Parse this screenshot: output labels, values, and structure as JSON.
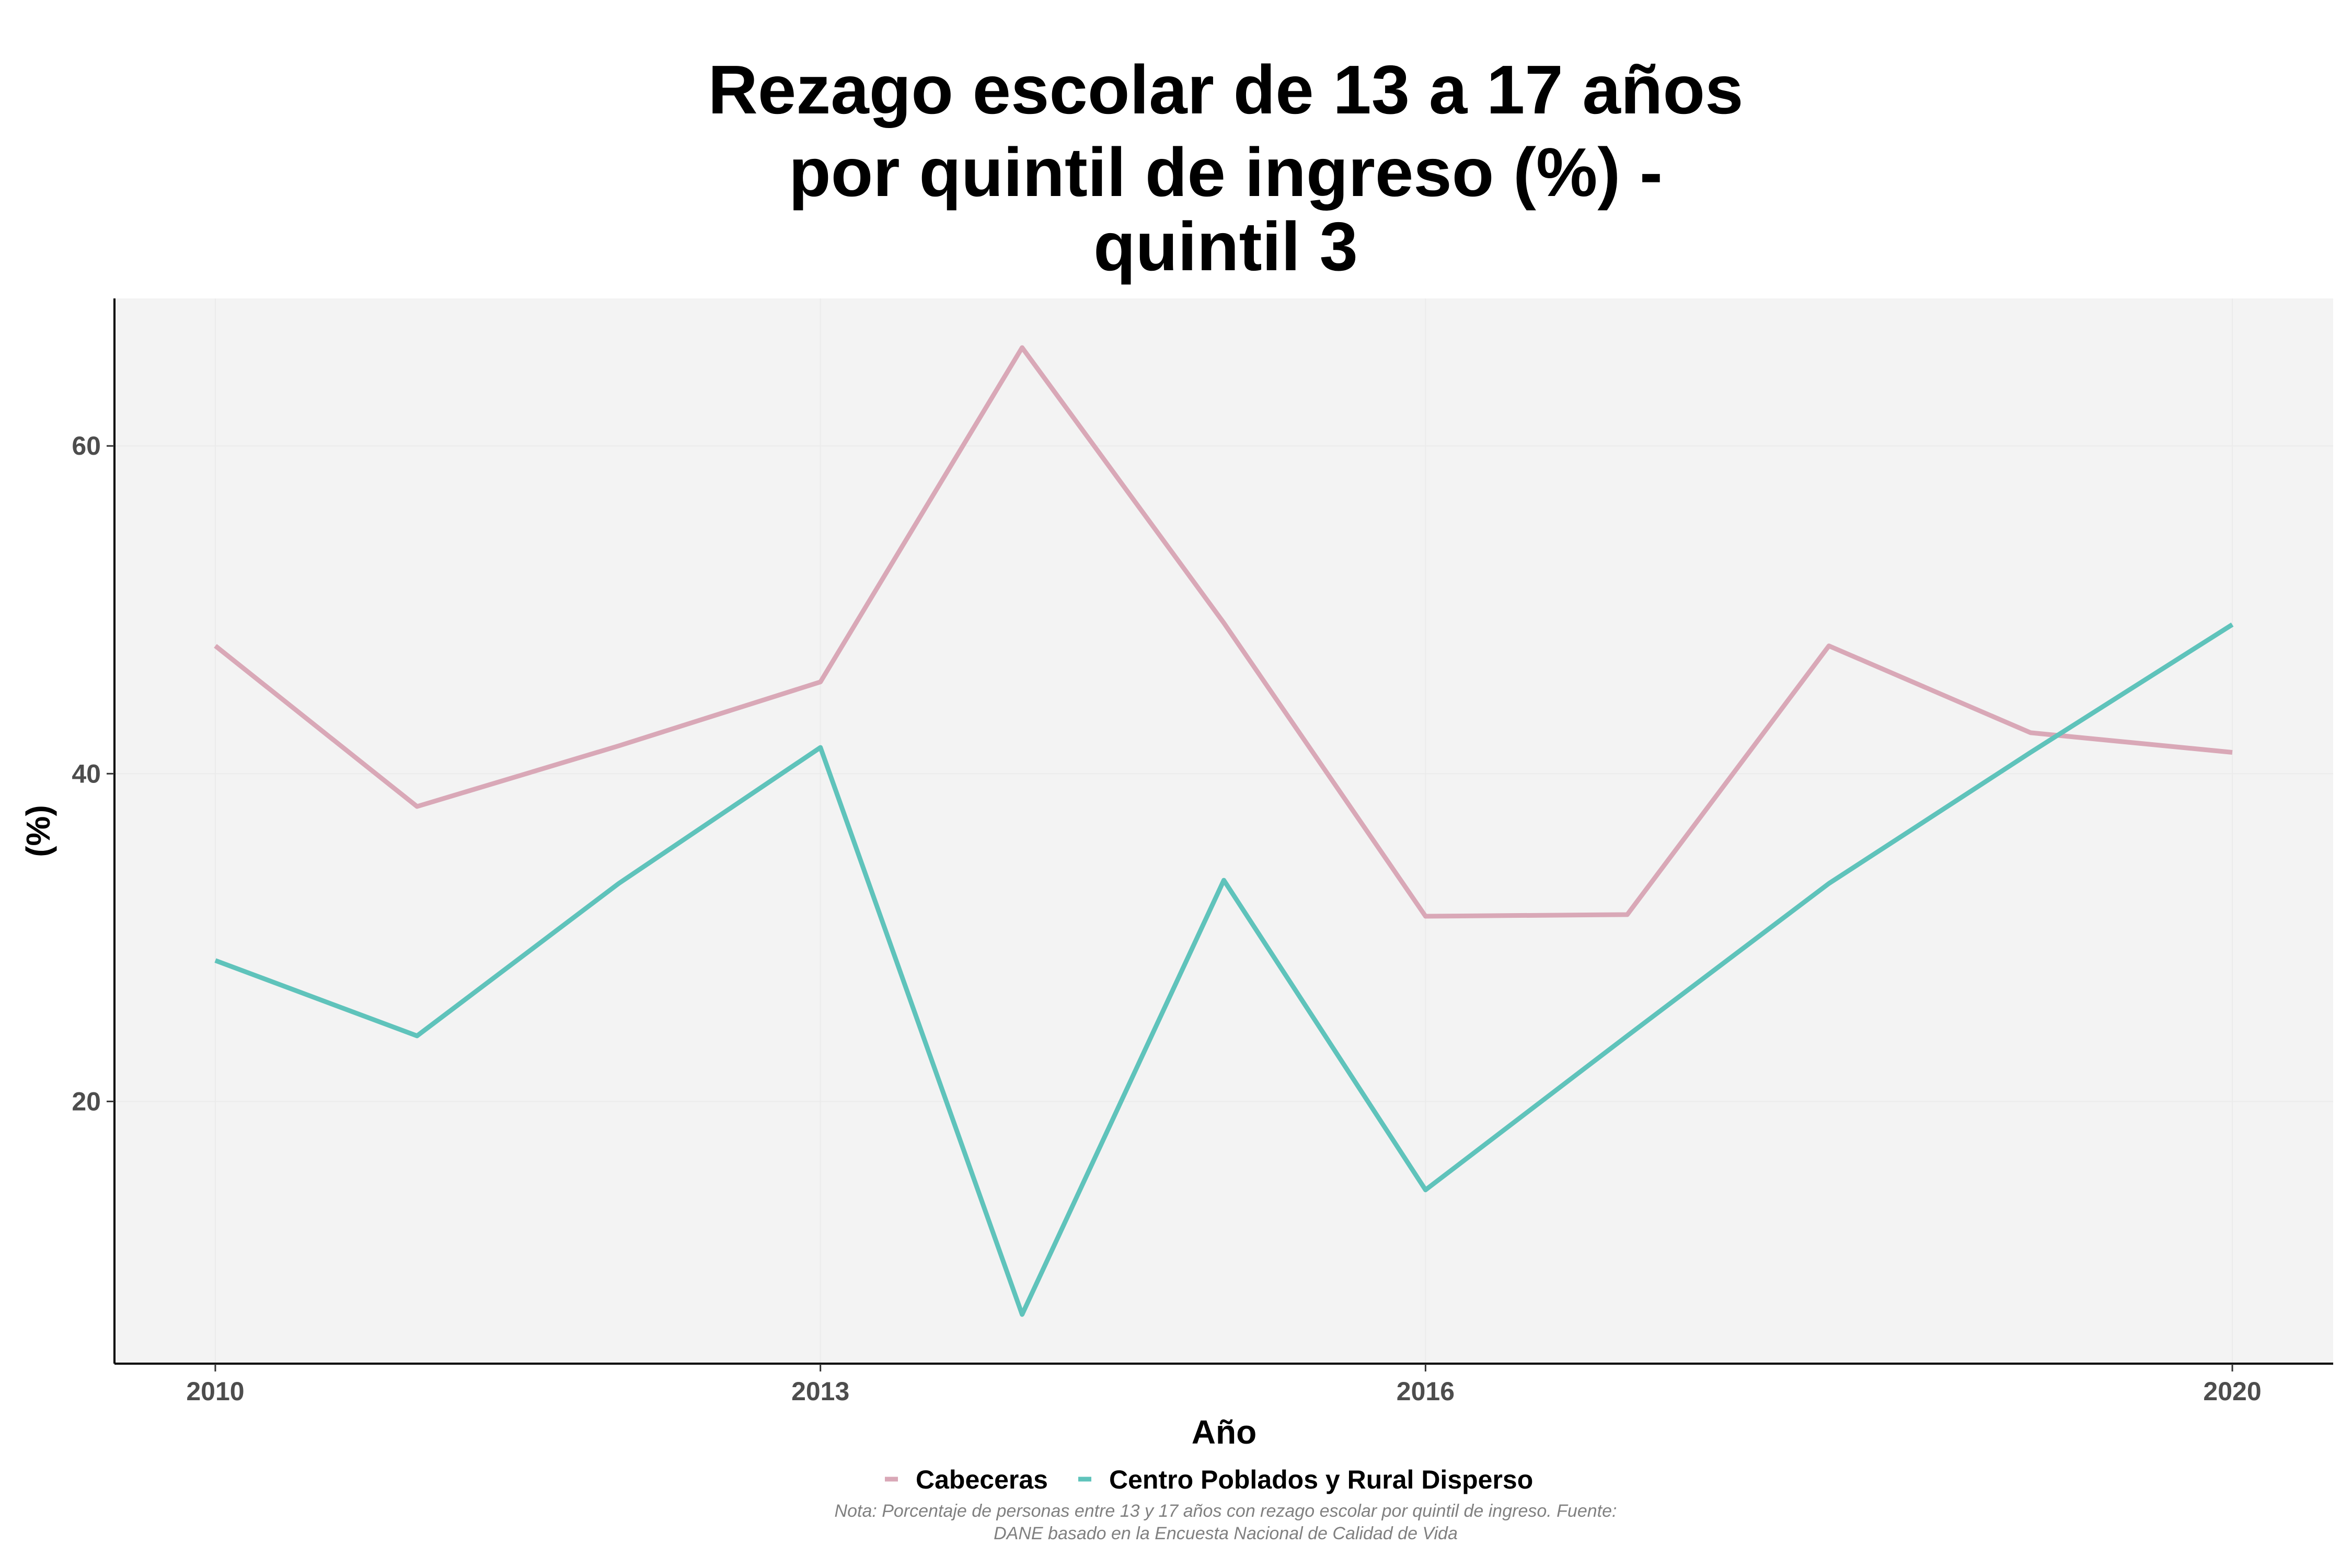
{
  "chart_data": {
    "type": "line",
    "title_lines": [
      "Rezago escolar de 13 a 17 años",
      "por quintil de ingreso (%) -",
      "quintil 3"
    ],
    "xlabel": "Año",
    "ylabel": "(%)",
    "xlim": [
      2009.5,
      2020.5
    ],
    "ylim": [
      4,
      69
    ],
    "x_ticks": [
      2010,
      2013,
      2016,
      2020
    ],
    "y_ticks": [
      20,
      40,
      60
    ],
    "grid": true,
    "legend_position": "bottom",
    "x": [
      2010,
      2011,
      2012,
      2013,
      2014,
      2015,
      2016,
      2017,
      2018,
      2019,
      2020
    ],
    "series": [
      {
        "name": "Cabeceras",
        "color": "#d9a8b7",
        "values": [
          47.8,
          38.0,
          41.7,
          45.6,
          66.0,
          49.2,
          31.3,
          31.4,
          47.8,
          42.5,
          41.3
        ]
      },
      {
        "name": "Centro Poblados y Rural Disperso",
        "color": "#5fc3bb",
        "values": [
          28.6,
          24.0,
          33.3,
          41.6,
          7.0,
          33.5,
          14.6,
          24.0,
          33.3,
          41.3,
          49.1
        ]
      }
    ],
    "note_lines": [
      "Nota: Porcentaje de personas entre 13 y 17 años con rezago escolar por quintil de ingreso. Fuente:",
      "DANE basado en la Encuesta Nacional de Calidad de Vida"
    ]
  }
}
